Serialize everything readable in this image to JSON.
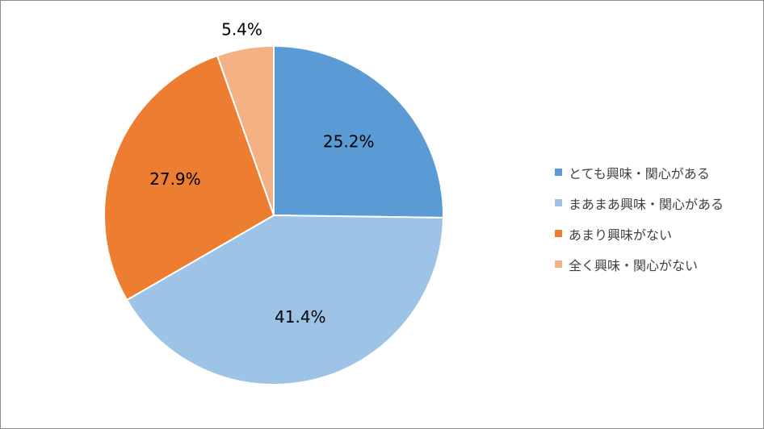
{
  "chart_data": {
    "type": "pie",
    "title": "",
    "start_angle": "12 o'clock, clockwise",
    "legend_position": "right",
    "slices": [
      {
        "label": "とても興味・関心がある",
        "value": 25.2,
        "display": "25.2%",
        "color": "#5b9bd5"
      },
      {
        "label": "まあまあ興味・関心がある",
        "value": 41.4,
        "display": "41.4%",
        "color": "#9dc3e6"
      },
      {
        "label": "あまり興味がない",
        "value": 27.9,
        "display": "27.9%",
        "color": "#ed7d31"
      },
      {
        "label": "全く興味・関心がない",
        "value": 5.4,
        "display": "5.4%",
        "color": "#f4b183"
      }
    ]
  }
}
